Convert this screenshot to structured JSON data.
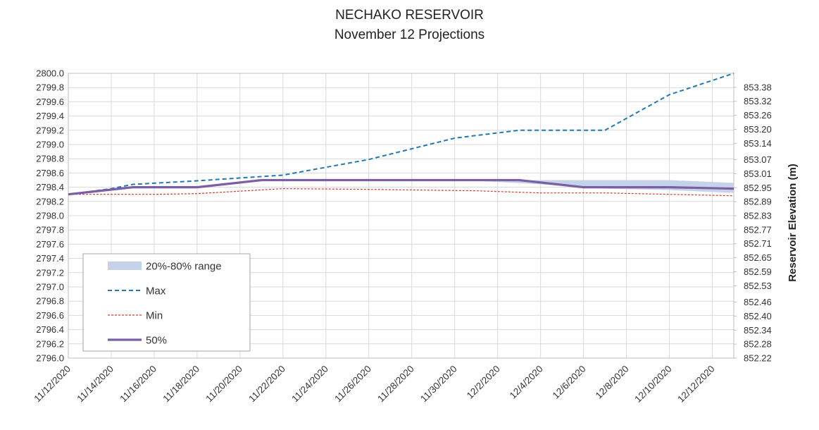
{
  "chart_data": {
    "type": "line",
    "title": "NECHAKO RESERVOIR",
    "subtitle": "November 12 Projections",
    "ylabel_right": "Reservoir Elevation (m)",
    "x_ticks": [
      "11/12/2020",
      "11/14/2020",
      "11/16/2020",
      "11/18/2020",
      "11/20/2020",
      "11/22/2020",
      "11/24/2020",
      "11/26/2020",
      "11/28/2020",
      "11/30/2020",
      "12/2/2020",
      "12/4/2020",
      "12/6/2020",
      "12/8/2020",
      "12/10/2020",
      "12/12/2020"
    ],
    "x_start": "2020-11-12",
    "x_end": "2020-12-13",
    "ylim": [
      2796.0,
      2800.0
    ],
    "y_ticks": [
      "2800.0",
      "2799.8",
      "2799.6",
      "2799.4",
      "2799.2",
      "2799.0",
      "2798.8",
      "2798.6",
      "2798.4",
      "2798.2",
      "2798.0",
      "2797.8",
      "2797.6",
      "2797.4",
      "2797.2",
      "2797.0",
      "2796.8",
      "2796.6",
      "2796.4",
      "2796.2",
      "2796.0"
    ],
    "y2_ticks": [
      "853.38",
      "853.32",
      "853.26",
      "853.20",
      "853.14",
      "853.07",
      "853.01",
      "852.95",
      "852.89",
      "852.83",
      "852.77",
      "852.71",
      "852.65",
      "852.59",
      "852.53",
      "852.46",
      "852.40",
      "852.34",
      "852.28",
      "852.22"
    ],
    "y2_range": [
      852.22,
      853.44
    ],
    "grid": true,
    "legend_position": "bottom-left",
    "series": [
      {
        "name": "20%-80% range",
        "kind": "band",
        "color": "#c5d3ea",
        "points": [
          {
            "x": "2020-11-12",
            "low": 2798.3,
            "high": 2798.3
          },
          {
            "x": "2020-11-16",
            "low": 2798.4,
            "high": 2798.4
          },
          {
            "x": "2020-11-19",
            "low": 2798.4,
            "high": 2798.4
          },
          {
            "x": "2020-11-22",
            "low": 2798.5,
            "high": 2798.5
          },
          {
            "x": "2020-12-1",
            "low": 2798.49,
            "high": 2798.5
          },
          {
            "x": "2020-12-4",
            "low": 2798.44,
            "high": 2798.5
          },
          {
            "x": "2020-12-7",
            "low": 2798.38,
            "high": 2798.5
          },
          {
            "x": "2020-12-10",
            "low": 2798.36,
            "high": 2798.5
          },
          {
            "x": "2020-12-13",
            "low": 2798.32,
            "high": 2798.46
          }
        ]
      },
      {
        "name": "Max",
        "kind": "line",
        "style": "dashed",
        "color": "#2079b4",
        "points": [
          {
            "x": "2020-11-12",
            "y": 2798.3
          },
          {
            "x": "2020-11-14",
            "y": 2798.38
          },
          {
            "x": "2020-11-15",
            "y": 2798.44
          },
          {
            "x": "2020-11-18",
            "y": 2798.49
          },
          {
            "x": "2020-11-22",
            "y": 2798.57
          },
          {
            "x": "2020-11-26",
            "y": 2798.79
          },
          {
            "x": "2020-11-30",
            "y": 2799.09
          },
          {
            "x": "2020-12-3",
            "y": 2799.2
          },
          {
            "x": "2020-12-7",
            "y": 2799.2
          },
          {
            "x": "2020-12-10",
            "y": 2799.7
          },
          {
            "x": "2020-12-13",
            "y": 2800.0
          }
        ]
      },
      {
        "name": "Min",
        "kind": "line",
        "style": "dotted",
        "color": "#d63a2f",
        "points": [
          {
            "x": "2020-11-12",
            "y": 2798.3
          },
          {
            "x": "2020-11-16",
            "y": 2798.3
          },
          {
            "x": "2020-11-18",
            "y": 2798.31
          },
          {
            "x": "2020-11-22",
            "y": 2798.38
          },
          {
            "x": "2020-11-26",
            "y": 2798.37
          },
          {
            "x": "2020-12-1",
            "y": 2798.35
          },
          {
            "x": "2020-12-4",
            "y": 2798.32
          },
          {
            "x": "2020-12-7",
            "y": 2798.32
          },
          {
            "x": "2020-12-10",
            "y": 2798.3
          },
          {
            "x": "2020-12-13",
            "y": 2798.28
          }
        ]
      },
      {
        "name": "50%",
        "kind": "line",
        "style": "solid",
        "color": "#7b5fa3",
        "points": [
          {
            "x": "2020-11-12",
            "y": 2798.3
          },
          {
            "x": "2020-11-15",
            "y": 2798.4
          },
          {
            "x": "2020-11-18",
            "y": 2798.4
          },
          {
            "x": "2020-11-21",
            "y": 2798.5
          },
          {
            "x": "2020-12-3",
            "y": 2798.5
          },
          {
            "x": "2020-12-6",
            "y": 2798.4
          },
          {
            "x": "2020-12-10",
            "y": 2798.4
          },
          {
            "x": "2020-12-13",
            "y": 2798.38
          }
        ]
      }
    ]
  }
}
